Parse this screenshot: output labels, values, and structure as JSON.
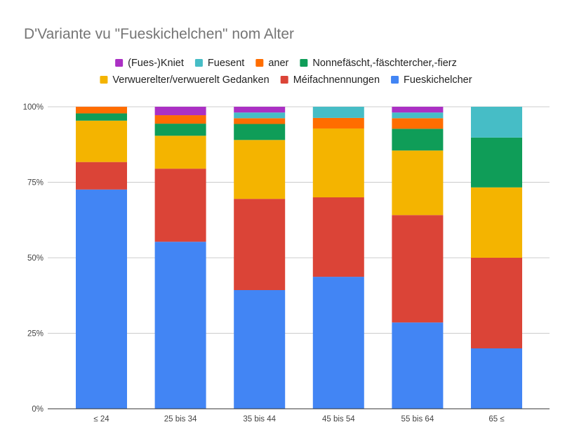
{
  "chart_data": {
    "type": "bar",
    "stacked": true,
    "percent_stacked": true,
    "title": "D'Variante vu \"Fueskichelchen\" nom Alter",
    "xlabel": "",
    "ylabel": "",
    "ylim": [
      0,
      100
    ],
    "y_ticks": [
      "0%",
      "25%",
      "50%",
      "75%",
      "100%"
    ],
    "y_tick_values": [
      0,
      25,
      50,
      75,
      100
    ],
    "grid": true,
    "legend_position": "top",
    "categories": [
      "≤ 24",
      "25 bis 34",
      "35 bis 44",
      "45 bis 54",
      "55 bis 64",
      "65 ≤"
    ],
    "series": [
      {
        "name": "Fueskichelcher",
        "color": "#4285f4",
        "values": [
          72.6,
          55.3,
          39.3,
          43.7,
          28.6,
          20.0
        ]
      },
      {
        "name": "Méifachnennungen",
        "color": "#db4437",
        "values": [
          9.1,
          24.2,
          30.2,
          26.3,
          35.6,
          30.0
        ]
      },
      {
        "name": "Verwuerelter/verwuerelt Gedanken",
        "color": "#f4b400",
        "values": [
          13.7,
          10.9,
          19.5,
          22.8,
          21.4,
          23.3
        ]
      },
      {
        "name": "Nonnefäscht,-fäschtercher,-fierz",
        "color": "#0f9d58",
        "values": [
          2.4,
          4.0,
          5.3,
          0,
          7.2,
          16.5
        ]
      },
      {
        "name": "aner",
        "color": "#ff6d00",
        "values": [
          2.2,
          2.8,
          1.9,
          3.5,
          3.5,
          0
        ]
      },
      {
        "name": "Fuesent",
        "color": "#46bdc6",
        "values": [
          0,
          0,
          1.9,
          3.7,
          1.9,
          10.2
        ]
      },
      {
        "name": "(Fues-)Kniet",
        "color": "#ab30c4",
        "values": [
          0,
          2.8,
          1.9,
          0,
          1.9,
          0
        ]
      }
    ],
    "legend_rows": [
      [
        "(Fues-)Kniet",
        "Fuesent",
        "aner",
        "Nonnefäscht,-fäschtercher,-fierz"
      ],
      [
        "Verwuerelter/verwuerelt Gedanken",
        "Méifachnennungen",
        "Fueskichelcher"
      ]
    ]
  }
}
